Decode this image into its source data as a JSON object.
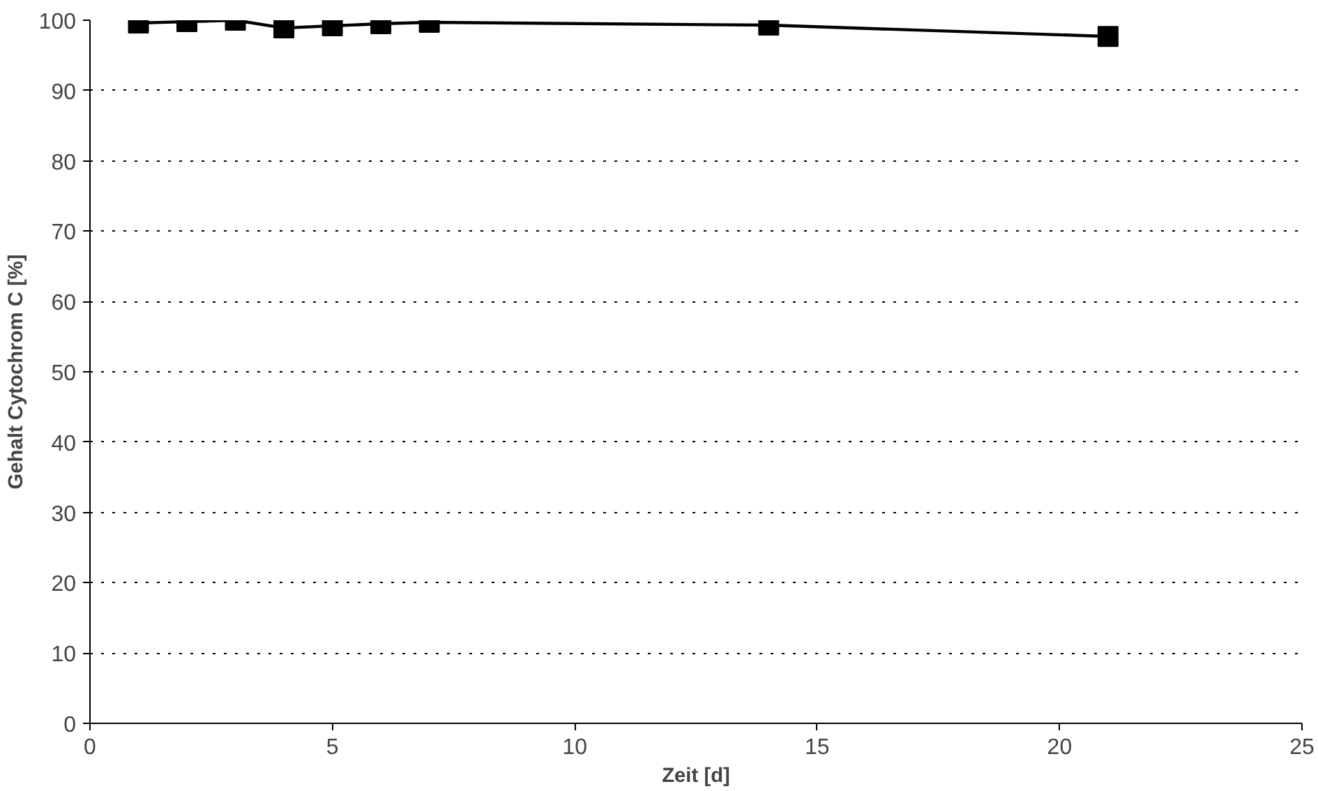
{
  "chart_data": {
    "type": "line",
    "xlabel": "Zeit [d]",
    "ylabel": "Gehalt Cytochrom C [%]",
    "x": [
      1,
      2,
      3,
      4,
      5,
      6,
      7,
      14,
      21
    ],
    "series": [
      {
        "color": "#000000",
        "values": [
          99.6,
          99.8,
          100,
          98.9,
          99.2,
          99.5,
          99.7,
          99.3,
          97.7
        ]
      }
    ],
    "xlim": [
      0,
      25
    ],
    "xticks": [
      0,
      5,
      10,
      15,
      20,
      25
    ],
    "ylim": [
      0,
      100
    ],
    "yticks": [
      0,
      10,
      20,
      30,
      40,
      50,
      60,
      70,
      80,
      90,
      100
    ],
    "grid": "y",
    "marker": "square",
    "line_style": "solid"
  }
}
